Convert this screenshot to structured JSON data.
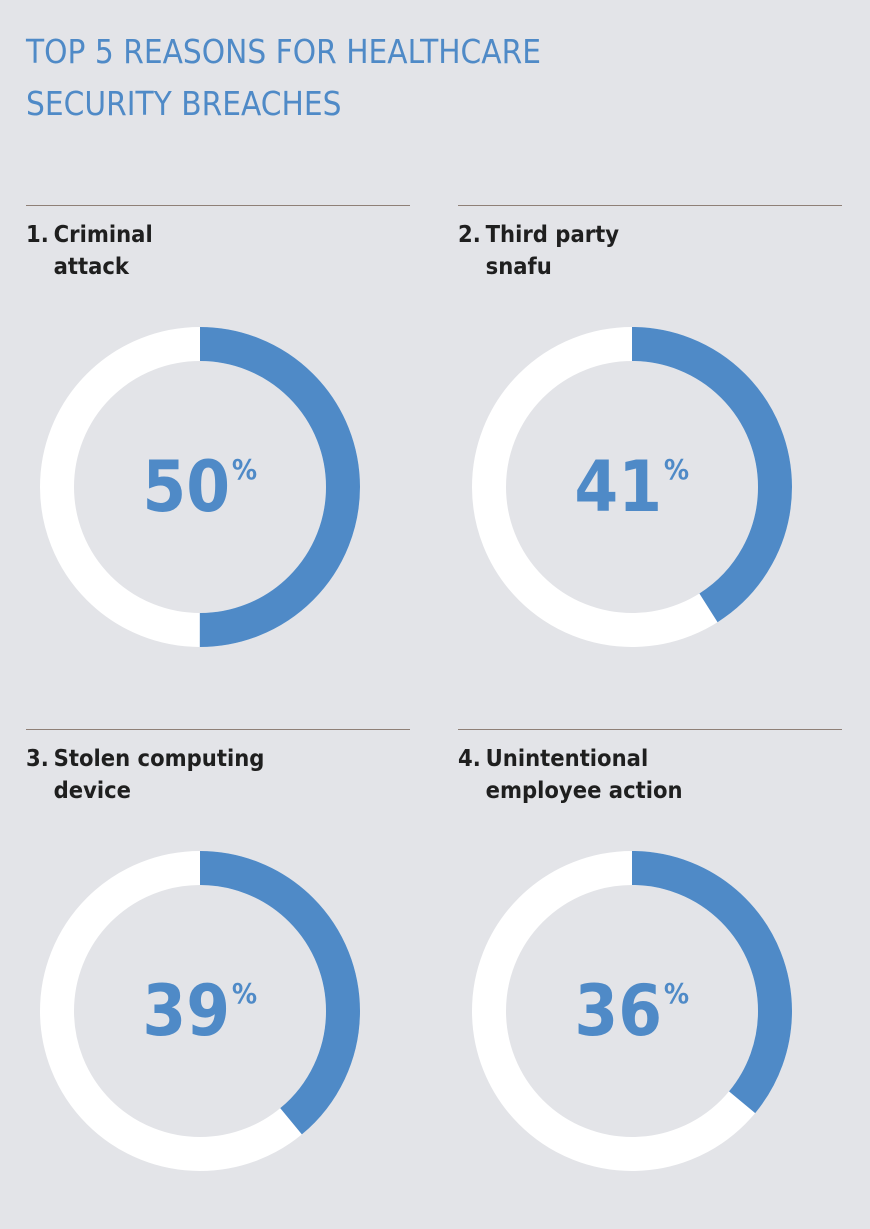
{
  "title_line1": "TOP 5 REASONS FOR HEALTHCARE",
  "title_line2": "SECURITY BREACHES",
  "colors": {
    "background": "#e3e4e8",
    "accent": "#4f8ac7",
    "ring_track": "#ffffff",
    "rule": "#8f8077",
    "label_text": "#1f1f1f"
  },
  "chart_data": [
    {
      "type": "pie",
      "rank": "1.",
      "label_line1": "Criminal",
      "label_line2": "attack",
      "value": 50,
      "value_text": "50",
      "unit": "%"
    },
    {
      "type": "pie",
      "rank": "2.",
      "label_line1": "Third party",
      "label_line2": "snafu",
      "value": 41,
      "value_text": "41",
      "unit": "%"
    },
    {
      "type": "pie",
      "rank": "3.",
      "label_line1": "Stolen computing",
      "label_line2": "device",
      "value": 39,
      "value_text": "39",
      "unit": "%"
    },
    {
      "type": "pie",
      "rank": "4.",
      "label_line1": "Unintentional",
      "label_line2": "employee action",
      "value": 36,
      "value_text": "36",
      "unit": "%"
    }
  ]
}
